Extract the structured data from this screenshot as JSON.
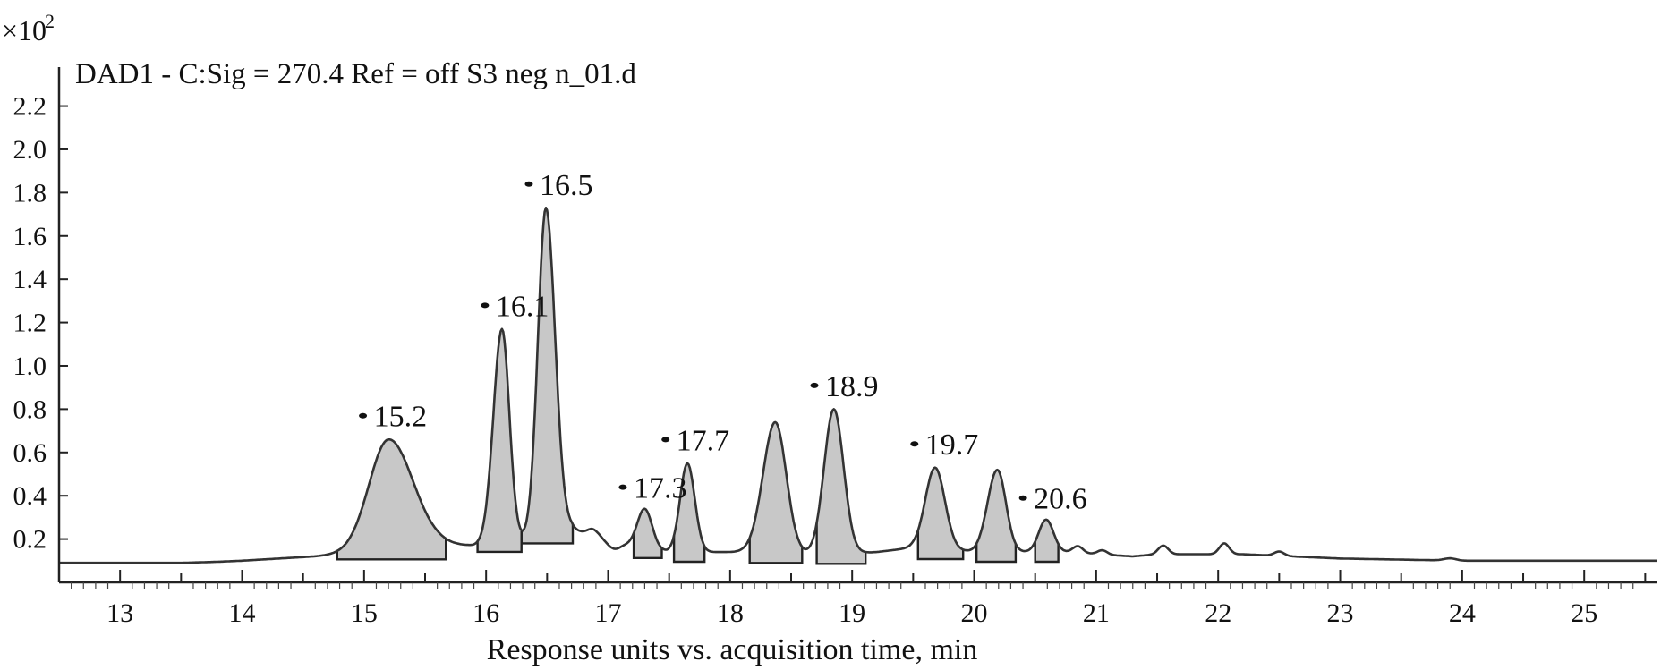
{
  "chart_data": {
    "type": "line",
    "title": "DAD1 - C:Sig = 270.4 Ref = off S3 neg n_01.d",
    "scale_note": "×10",
    "scale_exponent": "2",
    "xlabel": "Response units vs. acquisition time, min",
    "ylabel": "",
    "xlim": [
      12.5,
      25.6
    ],
    "ylim": [
      0.0,
      2.38
    ],
    "x_ticks": [
      "13",
      "14",
      "15",
      "16",
      "17",
      "18",
      "19",
      "20",
      "21",
      "22",
      "23",
      "24",
      "25"
    ],
    "y_ticks": [
      "0.2",
      "0.4",
      "0.6",
      "0.8",
      "1.0",
      "1.2",
      "1.4",
      "1.6",
      "1.8",
      "2.0",
      "2.2"
    ],
    "grid": false,
    "fill_color": "#c8c8c8",
    "line_color": "#333333",
    "baseline": [
      [
        12.5,
        0.09
      ],
      [
        13.0,
        0.09
      ],
      [
        13.5,
        0.09
      ],
      [
        13.8,
        0.095
      ],
      [
        14.0,
        0.1
      ],
      [
        14.3,
        0.11
      ],
      [
        14.6,
        0.12
      ],
      [
        14.8,
        0.13
      ],
      [
        15.0,
        0.14
      ],
      [
        15.6,
        0.17
      ],
      [
        15.9,
        0.17
      ],
      [
        16.3,
        0.2
      ],
      [
        16.7,
        0.25
      ],
      [
        16.9,
        0.2
      ],
      [
        17.0,
        0.19
      ],
      [
        17.5,
        0.14
      ],
      [
        17.9,
        0.14
      ],
      [
        18.1,
        0.14
      ],
      [
        18.6,
        0.13
      ],
      [
        18.9,
        0.13
      ],
      [
        19.2,
        0.14
      ],
      [
        19.5,
        0.16
      ],
      [
        19.8,
        0.15
      ],
      [
        20.0,
        0.14
      ],
      [
        20.4,
        0.14
      ],
      [
        20.8,
        0.14
      ],
      [
        21.0,
        0.13
      ],
      [
        21.3,
        0.12
      ],
      [
        21.5,
        0.13
      ],
      [
        21.8,
        0.13
      ],
      [
        22.2,
        0.13
      ],
      [
        22.6,
        0.12
      ],
      [
        23.0,
        0.11
      ],
      [
        23.5,
        0.105
      ],
      [
        24.0,
        0.1
      ],
      [
        24.5,
        0.1
      ],
      [
        25.0,
        0.1
      ],
      [
        25.6,
        0.1
      ]
    ],
    "ripples": [
      [
        16.88,
        0.04,
        0.05
      ],
      [
        17.05,
        -0.03,
        0.05
      ],
      [
        20.85,
        0.03,
        0.04
      ],
      [
        21.05,
        0.02,
        0.04
      ],
      [
        21.55,
        0.04,
        0.04
      ],
      [
        22.05,
        0.05,
        0.04
      ],
      [
        22.5,
        0.02,
        0.04
      ],
      [
        23.9,
        0.01,
        0.05
      ]
    ],
    "peaks": [
      {
        "label": "15.2",
        "apex": 15.2,
        "height": 0.66,
        "sigma_left": 0.16,
        "sigma_right": 0.2,
        "integration": [
          14.78,
          15.67
        ],
        "show_label": true
      },
      {
        "label": "16.1",
        "apex": 16.13,
        "height": 1.17,
        "sigma_left": 0.07,
        "sigma_right": 0.06,
        "integration": [
          15.93,
          16.29
        ],
        "show_label": true
      },
      {
        "label": "16.5",
        "apex": 16.49,
        "height": 1.73,
        "sigma_left": 0.065,
        "sigma_right": 0.075,
        "integration": [
          16.29,
          16.71
        ],
        "show_label": true
      },
      {
        "label": "17.3",
        "apex": 17.3,
        "height": 0.34,
        "sigma_left": 0.06,
        "sigma_right": 0.06,
        "integration": [
          17.21,
          17.44
        ],
        "show_label": true
      },
      {
        "label": "17.7",
        "apex": 17.65,
        "height": 0.55,
        "sigma_left": 0.06,
        "sigma_right": 0.06,
        "integration": [
          17.54,
          17.79
        ],
        "show_label": true
      },
      {
        "label": "",
        "apex": 18.37,
        "height": 0.74,
        "sigma_left": 0.1,
        "sigma_right": 0.09,
        "integration": [
          18.16,
          18.59
        ],
        "show_label": false
      },
      {
        "label": "18.9",
        "apex": 18.85,
        "height": 0.8,
        "sigma_left": 0.08,
        "sigma_right": 0.08,
        "integration": [
          18.71,
          19.11
        ],
        "show_label": true
      },
      {
        "label": "19.7",
        "apex": 19.68,
        "height": 0.53,
        "sigma_left": 0.08,
        "sigma_right": 0.08,
        "integration": [
          19.54,
          19.91
        ],
        "show_label": true
      },
      {
        "label": "",
        "apex": 20.19,
        "height": 0.52,
        "sigma_left": 0.08,
        "sigma_right": 0.07,
        "integration": [
          20.02,
          20.34
        ],
        "show_label": false
      },
      {
        "label": "20.6",
        "apex": 20.59,
        "height": 0.29,
        "sigma_left": 0.06,
        "sigma_right": 0.06,
        "integration": [
          20.5,
          20.69
        ],
        "show_label": true
      }
    ],
    "label_positions": [
      {
        "label": "15.2",
        "x": 15.02,
        "y": 0.72
      },
      {
        "label": "16.1",
        "x": 16.02,
        "y": 1.23
      },
      {
        "label": "16.5",
        "x": 16.38,
        "y": 1.79
      },
      {
        "label": "17.3",
        "x": 17.15,
        "y": 0.39
      },
      {
        "label": "17.7",
        "x": 17.5,
        "y": 0.61
      },
      {
        "label": "18.9",
        "x": 18.72,
        "y": 0.86
      },
      {
        "label": "19.7",
        "x": 19.54,
        "y": 0.59
      },
      {
        "label": "20.6",
        "x": 20.43,
        "y": 0.34
      }
    ]
  }
}
